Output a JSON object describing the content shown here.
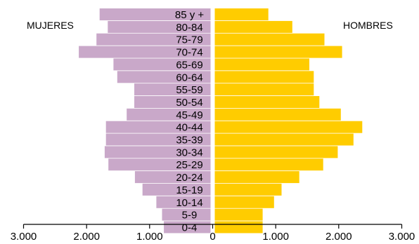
{
  "chart_data": {
    "type": "bar",
    "orientation": "horizontal-population-pyramid",
    "left_label": "MUJERES",
    "right_label": "HOMBRES",
    "categories": [
      "85 y +",
      "80-84",
      "75-79",
      "70-74",
      "65-69",
      "60-64",
      "55-59",
      "50-54",
      "45-49",
      "40-44",
      "35-39",
      "30-34",
      "25-29",
      "20-24",
      "15-19",
      "10-14",
      "5-9",
      "0-4"
    ],
    "series": [
      {
        "name": "MUJERES",
        "color": "#c9a8c9",
        "values": [
          1760,
          1630,
          1810,
          2090,
          1540,
          1480,
          1210,
          1210,
          1330,
          1660,
          1660,
          1680,
          1620,
          1200,
          1080,
          860,
          770,
          740
        ]
      },
      {
        "name": "HOMBRES",
        "color": "#ffcc00",
        "values": [
          850,
          1230,
          1740,
          2020,
          1500,
          1570,
          1570,
          1660,
          2000,
          2340,
          2200,
          1950,
          1720,
          1340,
          1060,
          940,
          760,
          760
        ]
      }
    ],
    "xlim": [
      -3000,
      3000
    ],
    "xticks": [
      {
        "value": -3000,
        "label": "3.000"
      },
      {
        "value": -2000,
        "label": "2.000"
      },
      {
        "value": -1000,
        "label": "1.000"
      },
      {
        "value": 0,
        "label": "0"
      },
      {
        "value": 1000,
        "label": "1.000"
      },
      {
        "value": 2000,
        "label": "2.000"
      },
      {
        "value": 3000,
        "label": "3.000"
      }
    ],
    "grid": false,
    "legend": "none"
  }
}
